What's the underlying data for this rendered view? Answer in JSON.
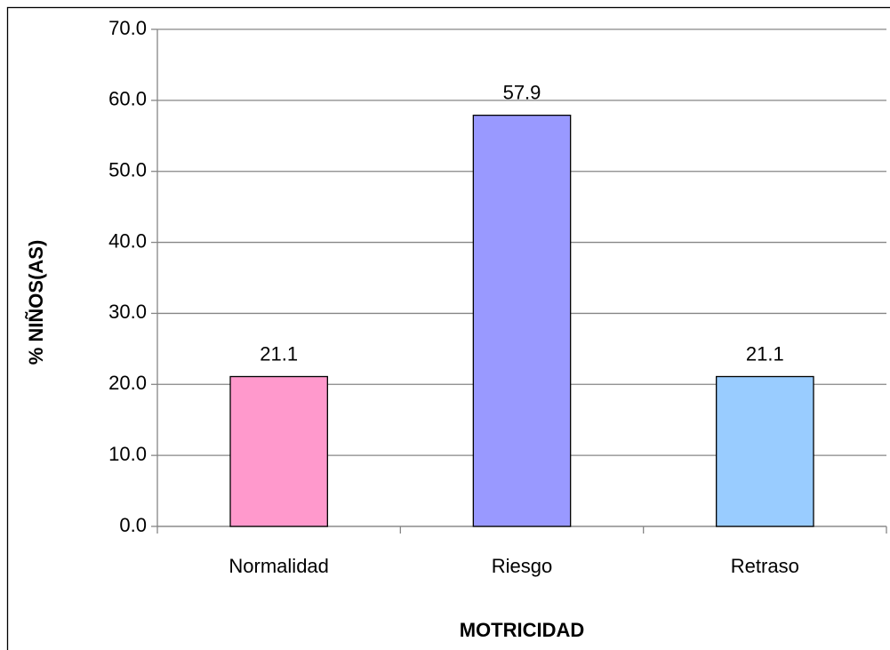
{
  "chart_data": {
    "type": "bar",
    "x_label": "MOTRICIDAD",
    "y_label": "% NIÑOS(AS)",
    "categories": [
      "Normalidad",
      "Riesgo",
      "Retraso"
    ],
    "values": [
      21.1,
      57.9,
      21.1
    ],
    "colors": [
      "#ff99cc",
      "#9999ff",
      "#99ccff"
    ],
    "ylim": [
      0,
      70
    ],
    "yticks": [
      {
        "value": 0,
        "label": "0.0"
      },
      {
        "value": 10,
        "label": "10.0"
      },
      {
        "value": 20,
        "label": "20.0"
      },
      {
        "value": 30,
        "label": "30.0"
      },
      {
        "value": 40,
        "label": "40.0"
      },
      {
        "value": 50,
        "label": "50.0"
      },
      {
        "value": 60,
        "label": "60.0"
      },
      {
        "value": 70,
        "label": "70.0"
      }
    ],
    "grid": true
  }
}
